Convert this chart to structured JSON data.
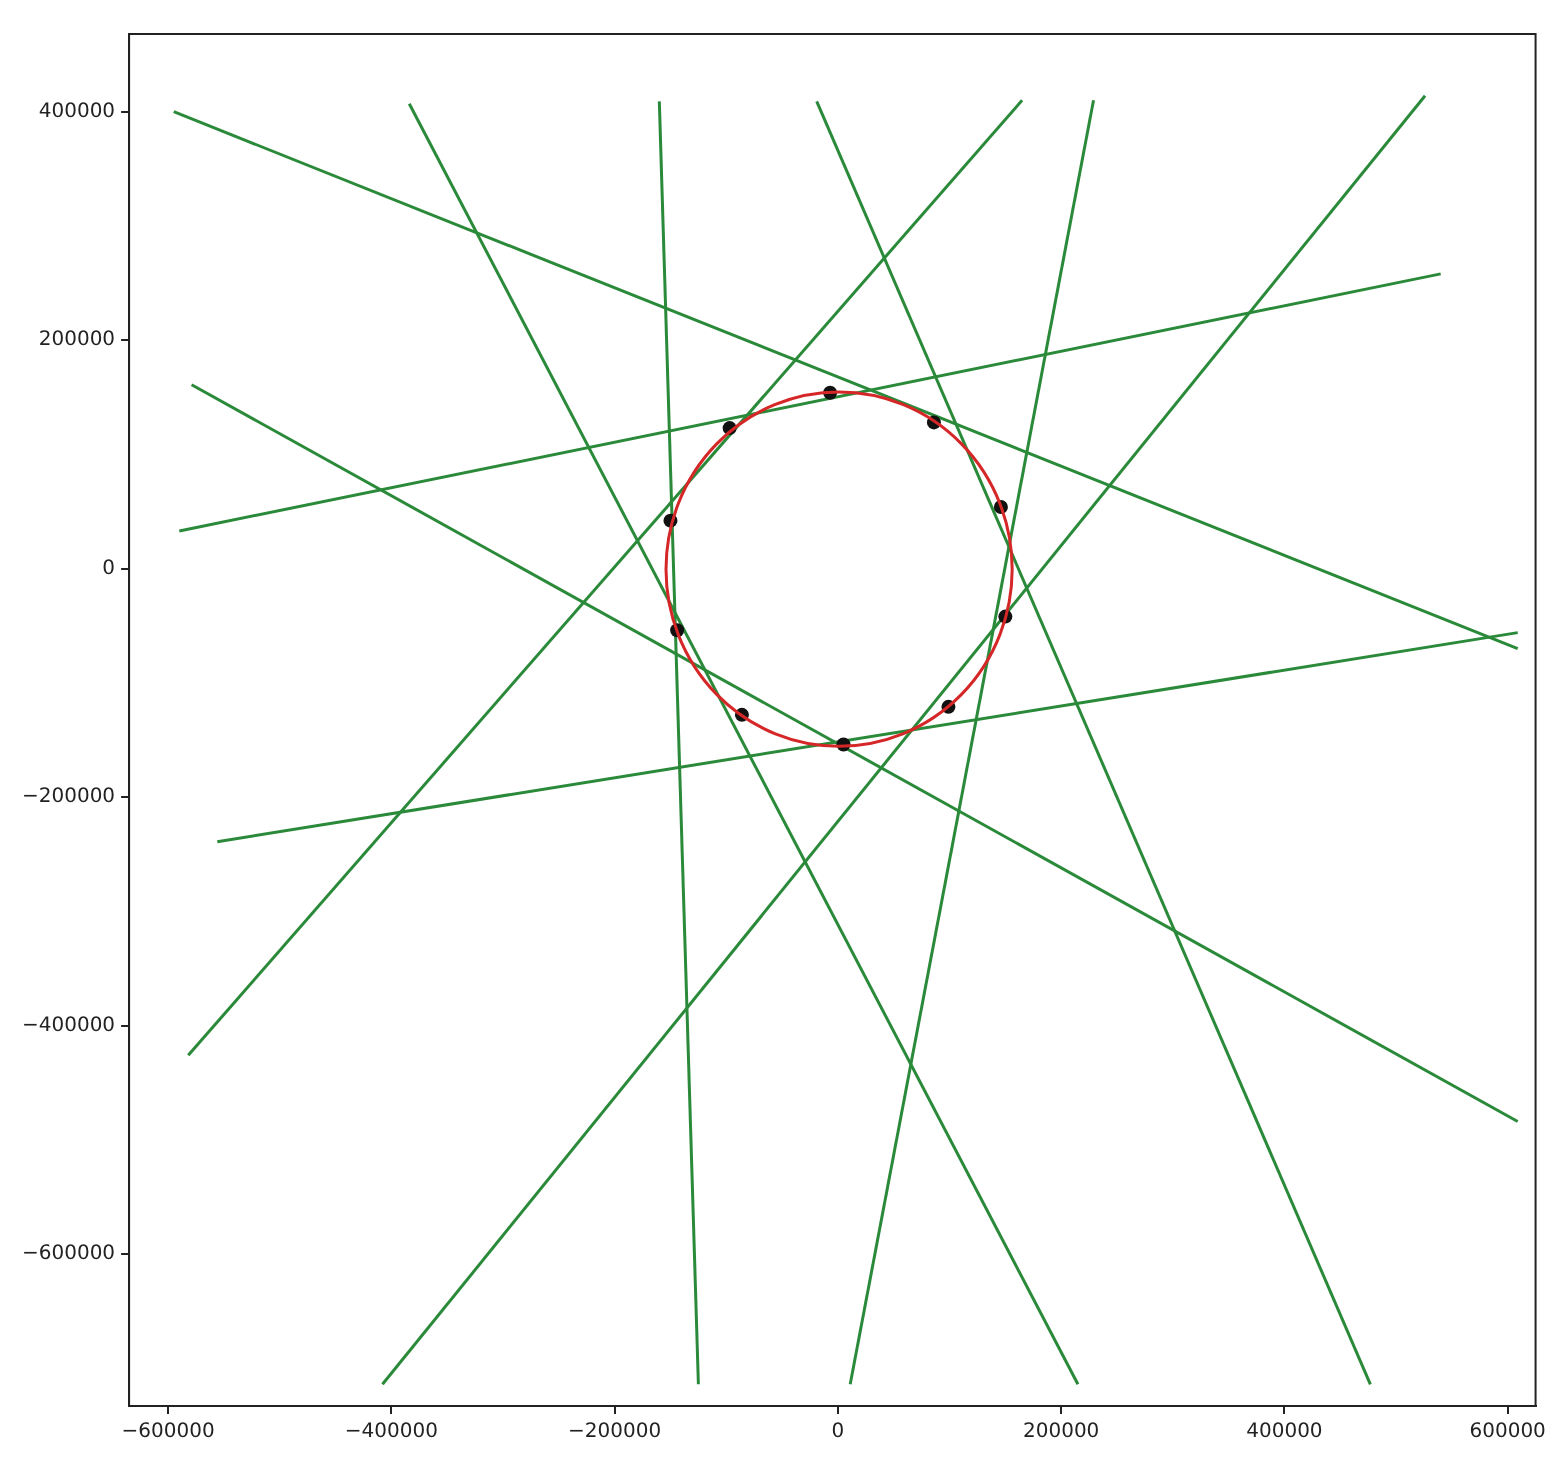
{
  "chart_data": {
    "type": "line",
    "xlim": [
      -635000,
      625000
    ],
    "ylim": [
      -733000,
      468000
    ],
    "xticks": [
      -600000,
      -400000,
      -200000,
      0,
      200000,
      400000,
      600000
    ],
    "yticks": [
      -600000,
      -400000,
      -200000,
      0,
      200000,
      400000
    ],
    "grid": false,
    "legend": false,
    "marker": "none",
    "series": [
      {
        "color": "#2a8a3a",
        "x": [
          -595000,
          609000
        ],
        "values": [
          400000,
          -70000
        ]
      },
      {
        "color": "#2a8a3a",
        "x": [
          -384000,
          215000
        ],
        "values": [
          407000,
          -714000
        ]
      },
      {
        "color": "#2a8a3a",
        "x": [
          -160000,
          -125000
        ],
        "values": [
          409000,
          -714000
        ]
      },
      {
        "color": "#2a8a3a",
        "x": [
          -19000,
          477000
        ],
        "values": [
          409000,
          -714000
        ]
      },
      {
        "color": "#2a8a3a",
        "x": [
          165000,
          -582000
        ],
        "values": [
          410000,
          -426000
        ]
      },
      {
        "color": "#2a8a3a",
        "x": [
          229000,
          11000
        ],
        "values": [
          410000,
          -714000
        ]
      },
      {
        "color": "#2a8a3a",
        "x": [
          526000,
          -408000
        ],
        "values": [
          414000,
          -714000
        ]
      },
      {
        "color": "#2a8a3a",
        "x": [
          -590000,
          540000
        ],
        "values": [
          33000,
          258000
        ]
      },
      {
        "color": "#2a8a3a",
        "x": [
          -579000,
          609000
        ],
        "values": [
          161000,
          -484000
        ]
      },
      {
        "color": "#2a8a3a",
        "x": [
          -556000,
          609000
        ],
        "values": [
          -239000,
          -56000
        ]
      },
      {
        "type": "scatter",
        "marker": "circle",
        "color": "#111111",
        "x": [
          -7000,
          86000,
          146000,
          150000,
          99000,
          5000,
          -86000,
          -144000,
          -150000,
          -97000
        ],
        "values": [
          154000,
          128000,
          54000,
          -42000,
          -121000,
          -154000,
          -128000,
          -54000,
          42000,
          123000
        ]
      }
    ]
  }
}
